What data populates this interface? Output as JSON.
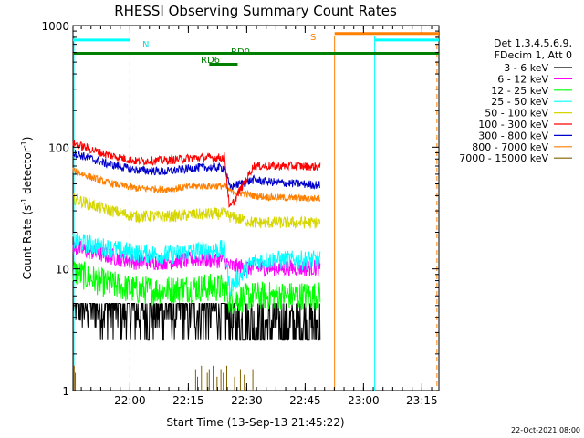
{
  "chart_data": {
    "type": "line",
    "title": "RHESSI Observing Summary Count Rates",
    "xlabel": "Start Time (13-Sep-13 21:45:22)",
    "ylabel_main": "Count Rate (s",
    "ylabel_sup1": "-1",
    "ylabel_mid": " detector",
    "ylabel_sup2": "-1",
    "ylabel_end": ")",
    "yscale": "log",
    "ylim": [
      1,
      1000
    ],
    "xlim_minutes": [
      0,
      94
    ],
    "x_ticks": [
      {
        "label": "22:00",
        "minute": 14.63
      },
      {
        "label": "22:15",
        "minute": 29.63
      },
      {
        "label": "22:30",
        "minute": 44.63
      },
      {
        "label": "22:45",
        "minute": 59.63
      },
      {
        "label": "23:00",
        "minute": 74.63
      },
      {
        "label": "23:15",
        "minute": 89.63
      }
    ],
    "y_ticks": [
      {
        "label": "1",
        "value": 1
      },
      {
        "label": "10",
        "value": 10
      },
      {
        "label": "100",
        "value": 100
      },
      {
        "label": "1000",
        "value": 1000
      }
    ],
    "legend_header": [
      "Det 1,3,4,5,6,9,",
      "FDecim 1, Att 0"
    ],
    "legend_position": "right",
    "footer_date": "22-Oct-2021 08:00",
    "series": [
      {
        "name": "3 - 6 keV",
        "color": "#000000",
        "points": [
          [
            0,
            5.5
          ],
          [
            8,
            4.8
          ],
          [
            16,
            4.3
          ],
          [
            24,
            4.4
          ],
          [
            32,
            4.5
          ],
          [
            39,
            4.6
          ],
          [
            40.2,
            3.6
          ],
          [
            46.4,
            3.3
          ],
          [
            50,
            3.3
          ],
          [
            58,
            3.3
          ],
          [
            63.5,
            3.3
          ]
        ]
      },
      {
        "name": "6 - 12 keV",
        "color": "#ff00ff",
        "points": [
          [
            0,
            15
          ],
          [
            8,
            13
          ],
          [
            16,
            11.5
          ],
          [
            24,
            11.5
          ],
          [
            32,
            12
          ],
          [
            39,
            11.8
          ],
          [
            40.2,
            10.5
          ],
          [
            46.4,
            10.2
          ],
          [
            50,
            10.2
          ],
          [
            58,
            10.2
          ],
          [
            63.5,
            10.2
          ]
        ]
      },
      {
        "name": "12 - 25 keV",
        "color": "#00ff00",
        "points": [
          [
            0,
            9.5
          ],
          [
            8,
            7.6
          ],
          [
            16,
            6.7
          ],
          [
            24,
            6.7
          ],
          [
            32,
            7
          ],
          [
            39,
            7
          ],
          [
            40.2,
            5.5
          ],
          [
            46.4,
            6
          ],
          [
            50,
            6
          ],
          [
            58,
            6
          ],
          [
            63.5,
            6
          ]
        ]
      },
      {
        "name": "25 - 50 keV",
        "color": "#00ffff",
        "points": [
          [
            0,
            17
          ],
          [
            8,
            15
          ],
          [
            16,
            13.5
          ],
          [
            24,
            13
          ],
          [
            32,
            14
          ],
          [
            39,
            14.5
          ],
          [
            40.2,
            7
          ],
          [
            46.4,
            11.5
          ],
          [
            50,
            11.8
          ],
          [
            58,
            11.8
          ],
          [
            63.5,
            11.8
          ]
        ]
      },
      {
        "name": "50 - 100 keV",
        "color": "#d6d600",
        "points": [
          [
            0,
            38
          ],
          [
            8,
            31
          ],
          [
            16,
            27
          ],
          [
            24,
            27
          ],
          [
            32,
            28
          ],
          [
            39,
            28.5
          ],
          [
            40.2,
            27
          ],
          [
            46.4,
            24
          ],
          [
            50,
            24
          ],
          [
            58,
            24
          ],
          [
            63.5,
            24
          ]
        ]
      },
      {
        "name": "100 - 300 keV",
        "color": "#ff0000",
        "points": [
          [
            0,
            108
          ],
          [
            8,
            88
          ],
          [
            16,
            77
          ],
          [
            24,
            78
          ],
          [
            32,
            82
          ],
          [
            39,
            82
          ],
          [
            40.2,
            31
          ],
          [
            46.4,
            70
          ],
          [
            50,
            70
          ],
          [
            58,
            70
          ],
          [
            63.5,
            69
          ]
        ]
      },
      {
        "name": "300 - 800 keV",
        "color": "#0000cc",
        "points": [
          [
            0,
            90
          ],
          [
            8,
            74
          ],
          [
            16,
            65
          ],
          [
            24,
            63
          ],
          [
            32,
            68
          ],
          [
            39,
            68
          ],
          [
            40.2,
            47
          ],
          [
            46.4,
            54
          ],
          [
            50,
            52
          ],
          [
            58,
            50
          ],
          [
            63.5,
            49
          ]
        ]
      },
      {
        "name": "800 - 7000 keV",
        "color": "#ff7f00",
        "points": [
          [
            0,
            64
          ],
          [
            8,
            52
          ],
          [
            16,
            46
          ],
          [
            24,
            45
          ],
          [
            32,
            48
          ],
          [
            39,
            48
          ],
          [
            40.2,
            44
          ],
          [
            46.4,
            40
          ],
          [
            50,
            39
          ],
          [
            58,
            38
          ],
          [
            63.5,
            38
          ]
        ]
      },
      {
        "name": "7000 - 15000 keV",
        "color": "#806000",
        "points": [
          [
            0,
            1.5
          ],
          [
            8,
            1
          ],
          [
            16,
            1
          ],
          [
            24,
            1
          ],
          [
            32,
            1
          ],
          [
            39,
            1
          ],
          [
            40.2,
            1
          ],
          [
            46.4,
            1
          ],
          [
            50,
            1
          ],
          [
            58,
            1
          ],
          [
            63.5,
            1
          ]
        ]
      }
    ],
    "annotations": {
      "N": "N",
      "RD0": "RD0",
      "RD6": "RD6",
      "S": "S"
    },
    "flag_bars": [
      {
        "label": "N",
        "color": "#00ffff",
        "y_value": 760,
        "segments": [
          [
            0,
            14.63
          ],
          [
            77.5,
            94
          ]
        ]
      },
      {
        "label": "S",
        "color": "#ff7f00",
        "y_value": 860,
        "segments": [
          [
            67.2,
            94
          ]
        ]
      },
      {
        "label": "RD0",
        "color": "#008000",
        "y_value": 590,
        "segments": [
          [
            0,
            94
          ]
        ]
      },
      {
        "label": "RD6",
        "color": "#008000",
        "y_value": 480,
        "segments": [
          [
            35,
            42.3
          ]
        ]
      }
    ],
    "vertical_markers": [
      {
        "name": "night-start",
        "color": "#00ffff",
        "minute": 14.63,
        "style": "dashed"
      },
      {
        "name": "night-end",
        "color": "#00ffff",
        "minute": 77.5,
        "style": "solid"
      },
      {
        "name": "saa-start",
        "color": "#ff7f00",
        "minute": 67.2,
        "style": "solid"
      },
      {
        "name": "saa-end",
        "color": "#ff7f00",
        "minute": 93.5,
        "style": "dashed"
      }
    ]
  }
}
